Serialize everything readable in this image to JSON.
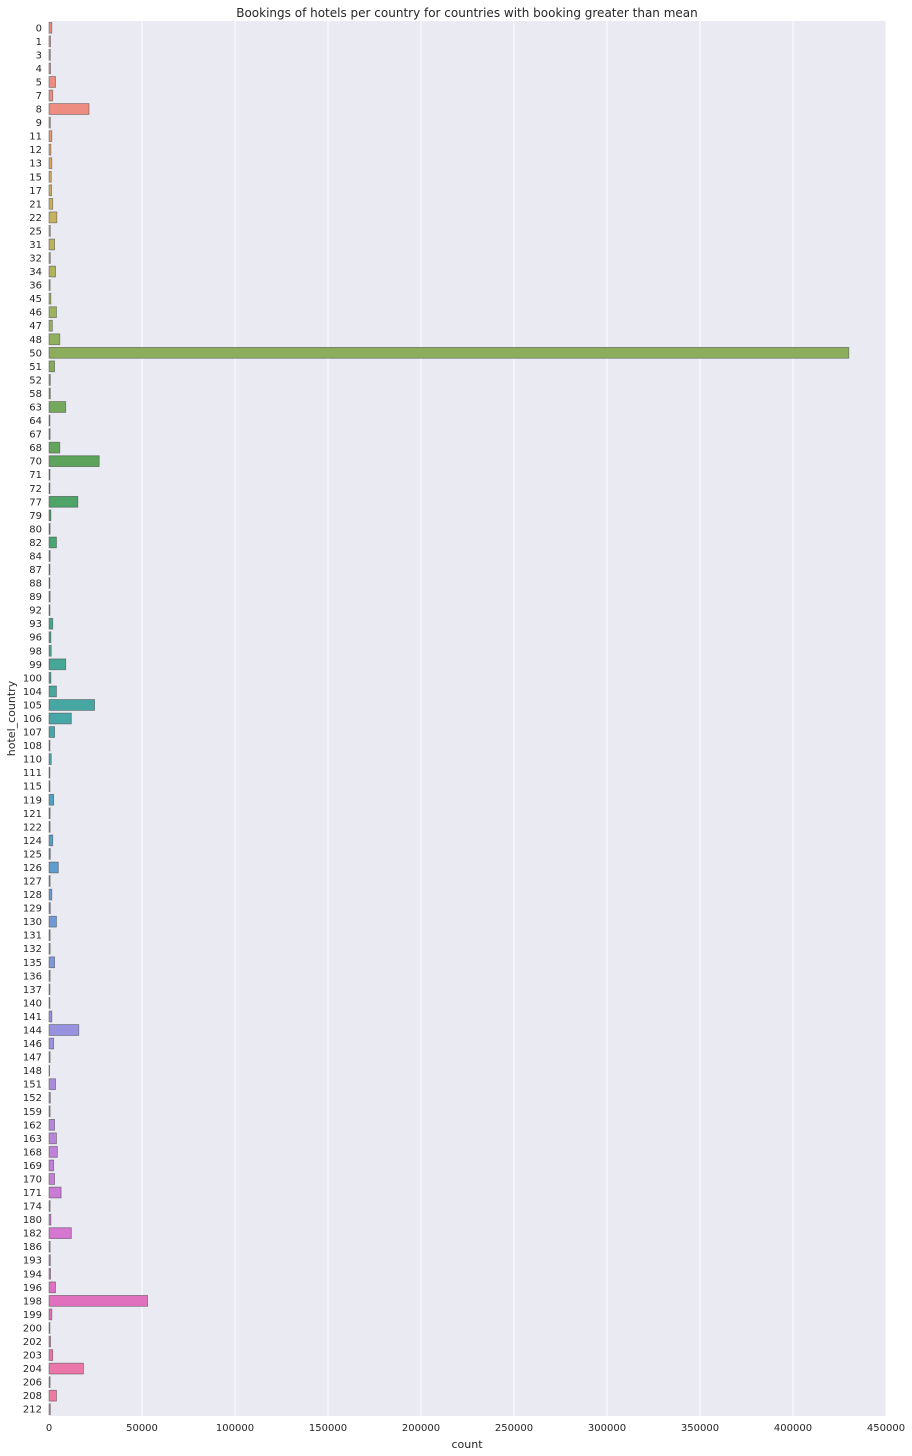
{
  "chart_data": {
    "type": "bar",
    "orientation": "horizontal",
    "title": "Bookings of hotels per country for countries with booking greater than mean",
    "xlabel": "count",
    "ylabel": "hotel_country",
    "xlim": [
      0,
      450000
    ],
    "xticks": [
      0,
      50000,
      100000,
      150000,
      200000,
      250000,
      300000,
      350000,
      400000,
      450000
    ],
    "grid": true,
    "background": "#eaeaf2",
    "categories": [
      "0",
      "1",
      "3",
      "4",
      "5",
      "7",
      "8",
      "9",
      "11",
      "12",
      "13",
      "15",
      "17",
      "21",
      "22",
      "25",
      "31",
      "32",
      "34",
      "36",
      "45",
      "46",
      "47",
      "48",
      "50",
      "51",
      "52",
      "58",
      "63",
      "64",
      "67",
      "68",
      "70",
      "71",
      "72",
      "77",
      "79",
      "80",
      "82",
      "84",
      "87",
      "88",
      "89",
      "92",
      "93",
      "96",
      "98",
      "99",
      "100",
      "104",
      "105",
      "106",
      "107",
      "108",
      "110",
      "111",
      "115",
      "119",
      "121",
      "122",
      "124",
      "125",
      "126",
      "127",
      "128",
      "129",
      "130",
      "131",
      "132",
      "135",
      "136",
      "137",
      "140",
      "141",
      "144",
      "146",
      "147",
      "148",
      "151",
      "152",
      "159",
      "162",
      "163",
      "168",
      "169",
      "170",
      "171",
      "174",
      "180",
      "182",
      "186",
      "193",
      "194",
      "196",
      "198",
      "199",
      "200",
      "202",
      "203",
      "204",
      "206",
      "208",
      "212"
    ],
    "values": [
      1500,
      800,
      700,
      800,
      3500,
      2000,
      21500,
      700,
      1500,
      1000,
      1500,
      1200,
      1400,
      2000,
      4200,
      700,
      3000,
      700,
      3500,
      600,
      1000,
      4000,
      1800,
      5800,
      430000,
      3000,
      700,
      700,
      9000,
      500,
      600,
      5800,
      27000,
      500,
      500,
      15500,
      1000,
      600,
      4000,
      600,
      500,
      500,
      600,
      500,
      2000,
      1000,
      1200,
      9000,
      1000,
      4000,
      24500,
      12000,
      3000,
      500,
      1200,
      500,
      500,
      2500,
      600,
      600,
      2000,
      700,
      5000,
      600,
      1500,
      700,
      4000,
      600,
      600,
      3000,
      600,
      500,
      500,
      1500,
      16000,
      2500,
      600,
      300,
      3500,
      700,
      600,
      3000,
      4000,
      4500,
      2500,
      3000,
      6500,
      600,
      1000,
      12000,
      600,
      700,
      800,
      3500,
      53000,
      1500,
      500,
      800,
      2000,
      18500,
      600,
      4000,
      700
    ],
    "colors": [
      "#ed8d81",
      "#ed8d81",
      "#ed8d81",
      "#ed8d81",
      "#ed8d81",
      "#ed8d81",
      "#ed8d81",
      "#e9937d",
      "#e69a71",
      "#e2a266",
      "#dda75f",
      "#d7ab5e",
      "#d1ad5d",
      "#cbb05c",
      "#c6b25c",
      "#c0b25c",
      "#bab35c",
      "#b4b35c",
      "#aeb35c",
      "#a8b35c",
      "#a2b35c",
      "#9cb35c",
      "#96b25c",
      "#90b05c",
      "#8bad5c",
      "#86ab5c",
      "#80aa5c",
      "#7aa95c",
      "#74a85c",
      "#6ea75c",
      "#68a65c",
      "#63a55c",
      "#5da35c",
      "#57a35e",
      "#52a262",
      "#4ea366",
      "#4ba46a",
      "#49a56e",
      "#48a672",
      "#47a776",
      "#46a77a",
      "#46a77e",
      "#46a782",
      "#46a786",
      "#46a78a",
      "#46a78e",
      "#46a792",
      "#46a796",
      "#46a79a",
      "#46a79e",
      "#46a7a2",
      "#46a7a6",
      "#47a6aa",
      "#48a6ae",
      "#49a5b2",
      "#4aa4b6",
      "#4ca3ba",
      "#4ea2be",
      "#50a1c2",
      "#53a0c5",
      "#569fc8",
      "#5a9ecb",
      "#5e9dce",
      "#629cd1",
      "#669bd3",
      "#6b9ad5",
      "#7099d7",
      "#7598d9",
      "#7a97da",
      "#7f96db",
      "#8495dc",
      "#8994dd",
      "#8e93de",
      "#9392de",
      "#9891de",
      "#9d90de",
      "#a18fde",
      "#a58ddd",
      "#a98bdc",
      "#ad8adb",
      "#b188da",
      "#b586d9",
      "#b984d8",
      "#bd82d7",
      "#c180d6",
      "#c57ed5",
      "#c97cd4",
      "#cd7ad3",
      "#d178d2",
      "#d576d1",
      "#d874ce",
      "#da73ca",
      "#dc72c6",
      "#de71c2",
      "#e071be",
      "#e271ba",
      "#e472b6",
      "#e673b2",
      "#e874ae",
      "#ea76aa",
      "#eb78a6",
      "#ec7aa2",
      "#ec7c9e"
    ],
    "legend": "none"
  }
}
